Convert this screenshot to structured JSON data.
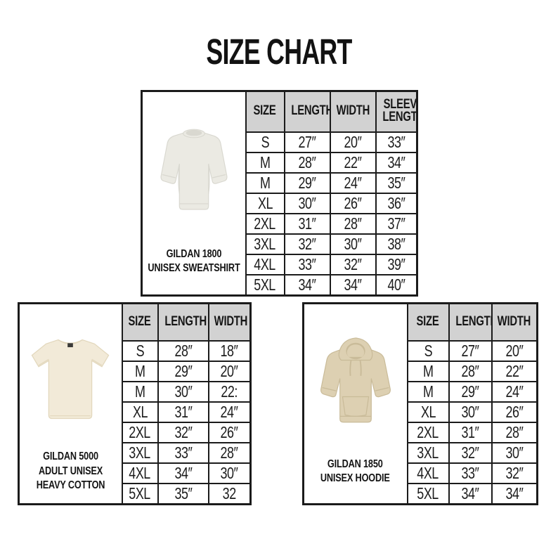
{
  "page": {
    "title": "SIZE CHART"
  },
  "colors": {
    "header_bg": "#d2d2d2",
    "border": "#1b1b1b",
    "text": "#1c1c1c",
    "sweatshirt": "#ebeae3",
    "tshirt": "#f2ead8",
    "hoodie": "#ddd0b2"
  },
  "tables": [
    {
      "id": "gildan-1800",
      "product": {
        "image": "sweatshirt-photo",
        "name_lines": [
          "GILDAN 1800",
          "UNISEX SWEATSHIRT"
        ]
      },
      "columns": [
        "SIZE",
        "LENGTH",
        "WIDTH",
        "SLEEVE LENGTH"
      ],
      "rows": [
        [
          "S",
          "27″",
          "20″",
          "33″"
        ],
        [
          "M",
          "28″",
          "22″",
          "34″"
        ],
        [
          "M",
          "29″",
          "24″",
          "35″"
        ],
        [
          "XL",
          "30″",
          "26″",
          "36″"
        ],
        [
          "2XL",
          "31″",
          "28″",
          "37″"
        ],
        [
          "3XL",
          "32″",
          "30″",
          "38″"
        ],
        [
          "4XL",
          "33″",
          "32″",
          "39″"
        ],
        [
          "5XL",
          "34″",
          "34″",
          "40″"
        ]
      ]
    },
    {
      "id": "gildan-5000",
      "product": {
        "image": "tshirt-photo",
        "name_lines": [
          "GILDAN 5000",
          "ADULT UNISEX",
          "HEAVY COTTON"
        ]
      },
      "columns": [
        "SIZE",
        "LENGTH",
        "WIDTH"
      ],
      "rows": [
        [
          "S",
          "28″",
          "18″"
        ],
        [
          "M",
          "29″",
          "20″"
        ],
        [
          "M",
          "30″",
          "22:"
        ],
        [
          "XL",
          "31″",
          "24″"
        ],
        [
          "2XL",
          "32″",
          "26″"
        ],
        [
          "3XL",
          "33″",
          "28″"
        ],
        [
          "4XL",
          "34″",
          "30″"
        ],
        [
          "5XL",
          "35″",
          "32"
        ]
      ]
    },
    {
      "id": "gildan-1850",
      "product": {
        "image": "hoodie-photo",
        "name_lines": [
          "GILDAN 1850",
          "UNISEX HOODIE"
        ]
      },
      "columns": [
        "SIZE",
        "LENGTH",
        "WIDTH"
      ],
      "rows": [
        [
          "S",
          "27″",
          "20″"
        ],
        [
          "M",
          "28″",
          "22″"
        ],
        [
          "M",
          "29″",
          "24″"
        ],
        [
          "XL",
          "30″",
          "26″"
        ],
        [
          "2XL",
          "31″",
          "28″"
        ],
        [
          "3XL",
          "32″",
          "30″"
        ],
        [
          "4XL",
          "33″",
          "32″"
        ],
        [
          "5XL",
          "34″",
          "34″"
        ]
      ]
    }
  ]
}
